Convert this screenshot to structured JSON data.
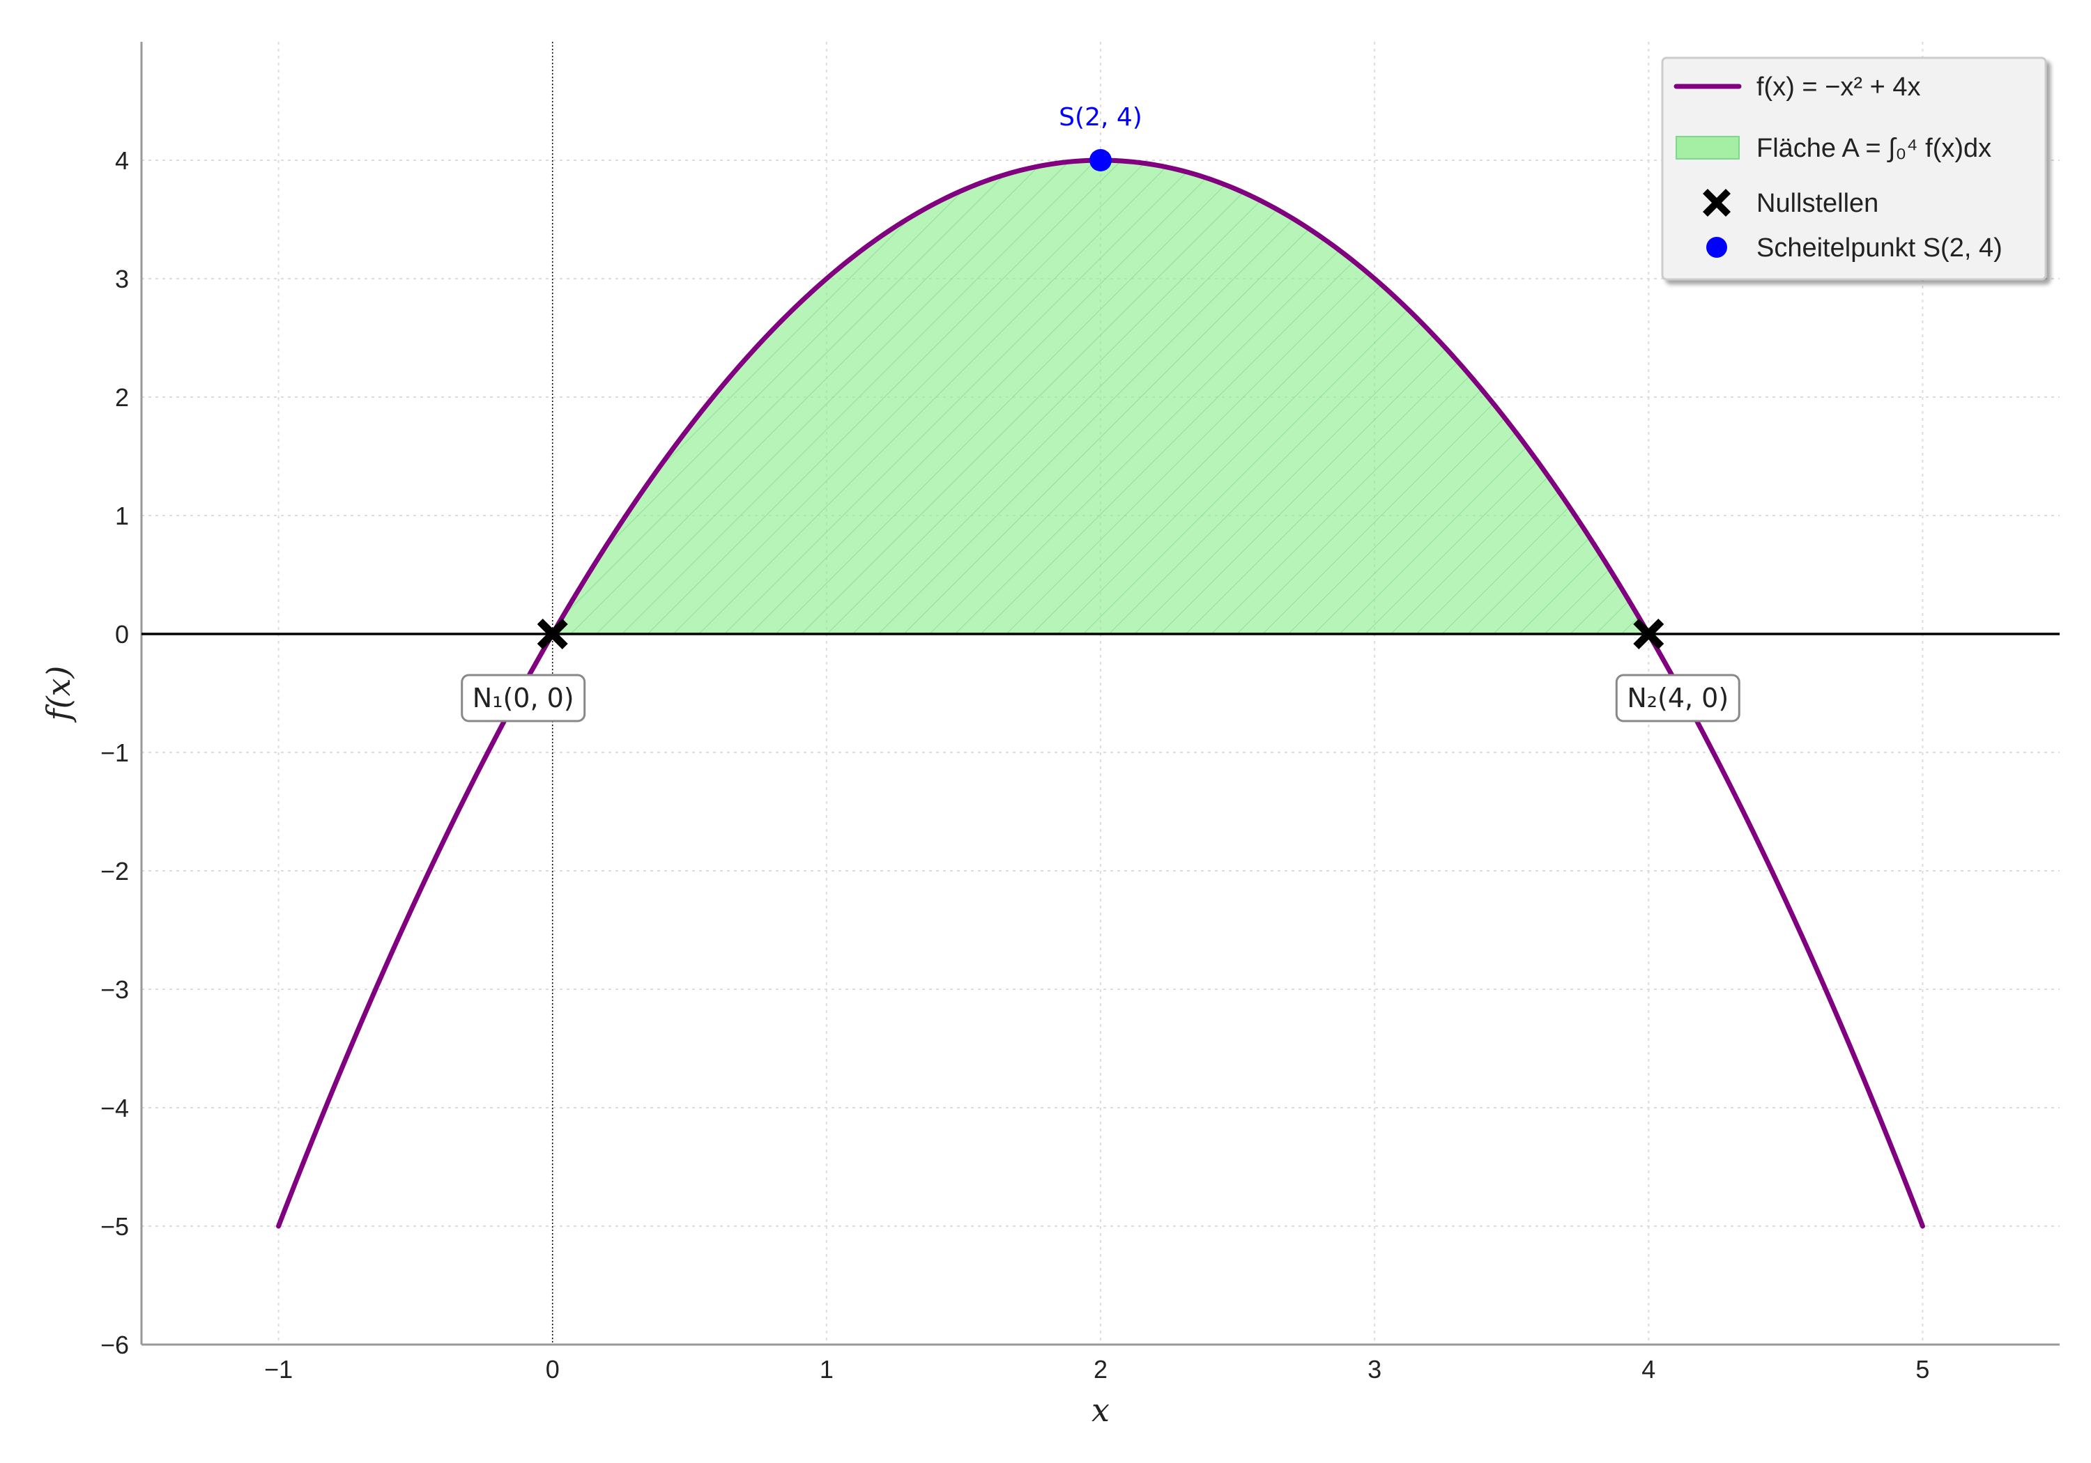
{
  "chart_data": {
    "type": "line",
    "xlabel": "x",
    "ylabel": "f(x)",
    "xlim": [
      -1.5,
      5.5
    ],
    "ylim": [
      -6,
      5
    ],
    "x_ticks": [
      -1,
      0,
      1,
      2,
      3,
      4,
      5
    ],
    "x_tick_labels": [
      "−1",
      "0",
      "1",
      "2",
      "3",
      "4",
      "5"
    ],
    "y_ticks": [
      -6,
      -5,
      -4,
      -3,
      -2,
      -1,
      0,
      1,
      2,
      3,
      4
    ],
    "y_tick_labels": [
      "−6",
      "−5",
      "−4",
      "−3",
      "−2",
      "−1",
      "0",
      "1",
      "2",
      "3",
      "4"
    ],
    "grid": true,
    "legend_position": "top-right",
    "series": [
      {
        "name": "f(x) = −x² + 4x",
        "color": "#800080",
        "x": [
          -1,
          -0.5,
          0,
          0.5,
          1,
          1.5,
          2,
          2.5,
          3,
          3.5,
          4,
          4.5,
          5
        ],
        "y": [
          -5,
          -2.25,
          0,
          1.75,
          3,
          3.75,
          4,
          3.75,
          3,
          1.75,
          0,
          -2.25,
          -5
        ]
      }
    ],
    "area": {
      "name": "Fläche A = ∫₀⁴ f(x)dx",
      "color": "#90EE90",
      "from": 0,
      "to": 4
    },
    "zeros": {
      "name": "Nullstellen",
      "color": "#000000",
      "points": [
        {
          "x": 0,
          "y": 0,
          "label": "N₁(0, 0)"
        },
        {
          "x": 4,
          "y": 0,
          "label": "N₂(4, 0)"
        }
      ]
    },
    "vertex": {
      "name": "Scheitelpunkt S(2, 4)",
      "color": "#0000FF",
      "x": 2,
      "y": 4,
      "label": "S(2, 4)"
    }
  }
}
